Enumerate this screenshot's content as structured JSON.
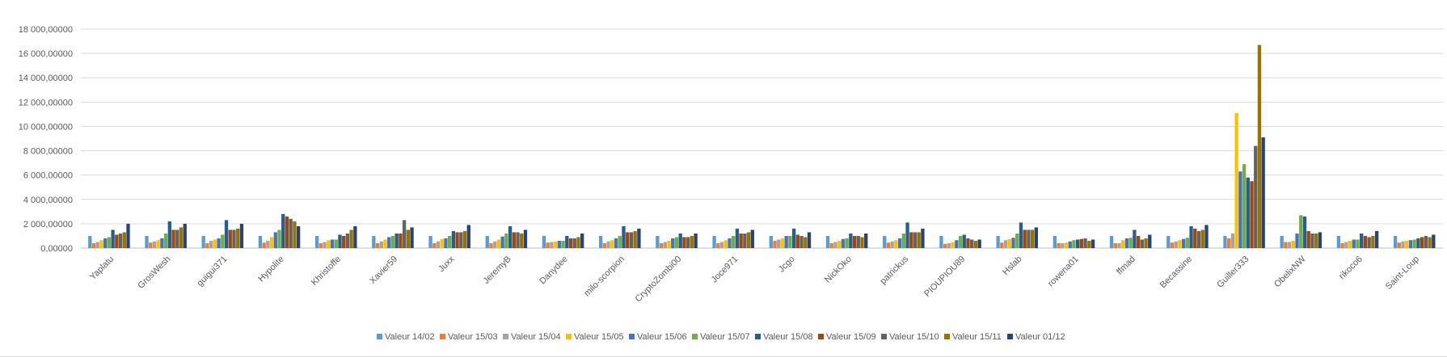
{
  "chart_data": {
    "type": "bar",
    "title": "",
    "xlabel": "",
    "ylabel": "",
    "ylim": [
      0,
      18000
    ],
    "yticks": [
      0,
      2000,
      4000,
      6000,
      8000,
      10000,
      12000,
      14000,
      16000,
      18000
    ],
    "ytick_labels": [
      "0,00000",
      "2 000,00000",
      "4 000,00000",
      "6 000,00000",
      "8 000,00000",
      "10 000,00000",
      "12 000,00000",
      "14 000,00000",
      "16 000,00000",
      "18 000,00000"
    ],
    "grid": true,
    "legend_position": "bottom",
    "categories": [
      "Yaplatu",
      "GrosWesh",
      "guigui371",
      "Hypolite",
      "Khristoffe",
      "Xavier59",
      "Juxx",
      "JeremyB",
      "Danydee",
      "milo-scorpion",
      "CryptoZombi00",
      "Joce971",
      "Jcgo",
      "NickOko",
      "patrickus",
      "PIOUPIOU89",
      "Hslab",
      "rowena01",
      "ffmad",
      "Becassine",
      "Guiller333",
      "ObelixNW",
      "rikoco6",
      "Saint-Loup"
    ],
    "series": [
      {
        "name": "Valeur 14/02",
        "color": "#5b9bd5",
        "values": [
          1000,
          1000,
          1000,
          1000,
          1000,
          1000,
          1000,
          1000,
          1000,
          1000,
          1000,
          1000,
          1000,
          1000,
          1000,
          1000,
          1000,
          1000,
          1000,
          1000,
          1000,
          1000,
          1000,
          1000
        ]
      },
      {
        "name": "Valeur 15/03",
        "color": "#ed7d31",
        "values": [
          400,
          450,
          400,
          450,
          400,
          400,
          400,
          400,
          450,
          400,
          400,
          400,
          600,
          400,
          450,
          350,
          450,
          400,
          400,
          450,
          800,
          500,
          400,
          450
        ]
      },
      {
        "name": "Valeur 15/04",
        "color": "#a5a5a5",
        "values": [
          500,
          550,
          600,
          600,
          500,
          550,
          550,
          550,
          500,
          550,
          500,
          500,
          700,
          500,
          550,
          400,
          650,
          400,
          400,
          550,
          1200,
          500,
          500,
          550
        ]
      },
      {
        "name": "Valeur 15/05",
        "color": "#ffc000",
        "values": [
          650,
          650,
          700,
          900,
          650,
          700,
          750,
          700,
          550,
          650,
          600,
          650,
          800,
          600,
          650,
          500,
          750,
          450,
          650,
          650,
          11100,
          600,
          600,
          600
        ]
      },
      {
        "name": "Valeur 15/06",
        "color": "#4472c4",
        "values": [
          800,
          800,
          800,
          1300,
          700,
          900,
          800,
          950,
          600,
          800,
          800,
          800,
          1000,
          750,
          800,
          650,
          850,
          550,
          800,
          750,
          6300,
          1200,
          700,
          650
        ]
      },
      {
        "name": "Valeur 15/07",
        "color": "#70ad47",
        "values": [
          900,
          1200,
          1100,
          1500,
          700,
          1000,
          1000,
          1200,
          600,
          1000,
          900,
          1000,
          1000,
          800,
          1200,
          1000,
          1200,
          650,
          850,
          850,
          6900,
          2700,
          700,
          700
        ]
      },
      {
        "name": "Valeur 15/08",
        "color": "#255e91",
        "values": [
          1500,
          2200,
          2300,
          2800,
          1100,
          1200,
          1400,
          1800,
          1000,
          1800,
          1200,
          1600,
          1600,
          1200,
          2100,
          1100,
          2100,
          700,
          1500,
          1800,
          5800,
          2600,
          1200,
          800
        ]
      },
      {
        "name": "Valeur 15/09",
        "color": "#9e480e",
        "values": [
          1100,
          1500,
          1500,
          2600,
          1000,
          1200,
          1300,
          1300,
          800,
          1300,
          900,
          1200,
          1100,
          1000,
          1300,
          800,
          1500,
          750,
          1000,
          1600,
          5500,
          1400,
          1000,
          900
        ]
      },
      {
        "name": "Valeur 15/10",
        "color": "#636363",
        "values": [
          1200,
          1500,
          1500,
          2400,
          1200,
          2300,
          1300,
          1300,
          800,
          1300,
          900,
          1200,
          1000,
          1000,
          1300,
          700,
          1500,
          800,
          700,
          1400,
          8400,
          1200,
          900,
          1000
        ]
      },
      {
        "name": "Valeur 15/11",
        "color": "#997300",
        "values": [
          1300,
          1700,
          1600,
          2200,
          1500,
          1500,
          1400,
          1200,
          900,
          1400,
          1000,
          1300,
          900,
          900,
          1300,
          600,
          1500,
          600,
          800,
          1500,
          16700,
          1200,
          1000,
          900
        ]
      },
      {
        "name": "Valeur 01/12",
        "color": "#264478",
        "values": [
          2000,
          2000,
          2000,
          1800,
          1800,
          1700,
          1900,
          1500,
          1200,
          1600,
          1200,
          1500,
          1300,
          1200,
          1600,
          700,
          1700,
          700,
          1100,
          1900,
          9100,
          1300,
          1400,
          1100
        ]
      }
    ]
  }
}
